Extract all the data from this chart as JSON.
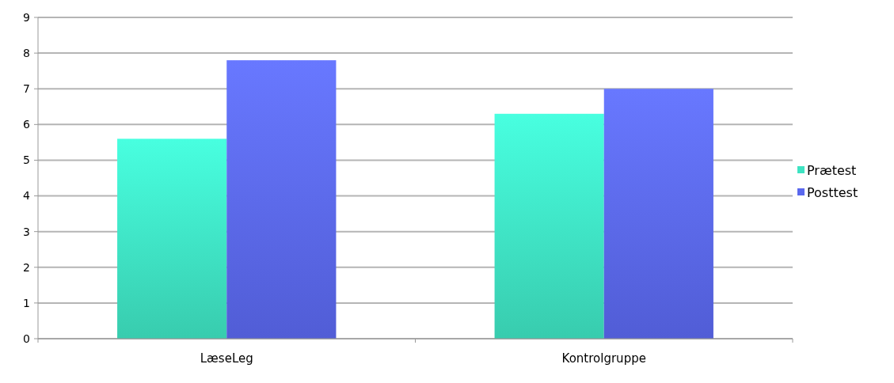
{
  "chart_data": {
    "type": "bar",
    "categories": [
      "LæseLeg",
      "Kontrolgruppe"
    ],
    "series": [
      {
        "name": "Prætest",
        "color": "#3ee3c2",
        "values": [
          5.6,
          6.3
        ]
      },
      {
        "name": "Posttest",
        "color": "#5a68ee",
        "values": [
          7.8,
          7.0
        ]
      }
    ],
    "ylim": [
      0,
      9
    ],
    "yticks": [
      0,
      1,
      2,
      3,
      4,
      5,
      6,
      7,
      8,
      9
    ],
    "grid": "y",
    "legend": "right"
  }
}
